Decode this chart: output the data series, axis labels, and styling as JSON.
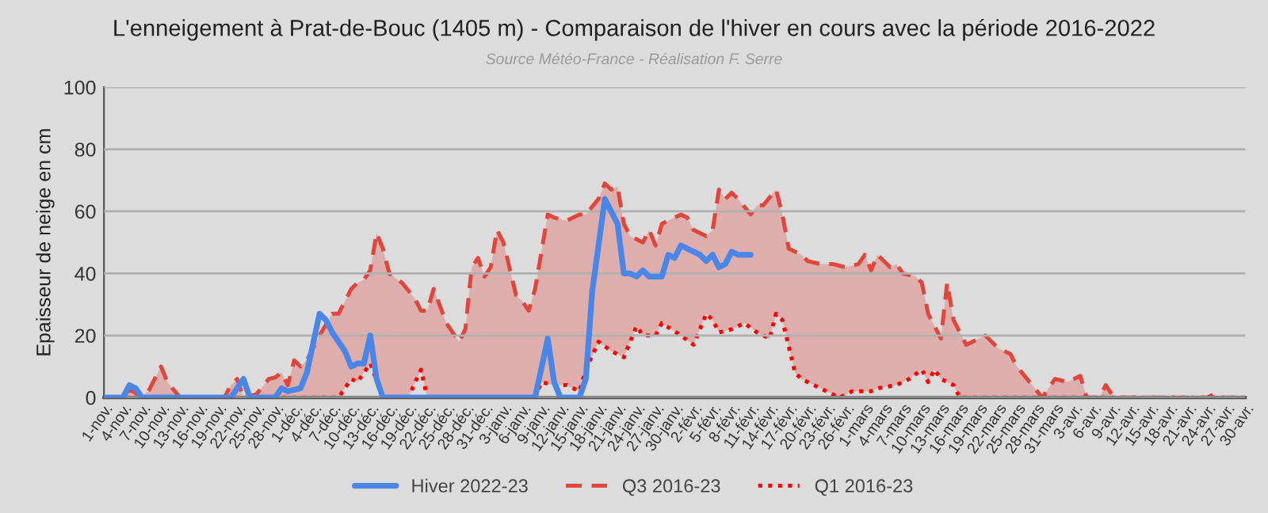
{
  "chart_data": {
    "type": "line",
    "title": "L'enneigement à Prat-de-Bouc (1405 m) - Comparaison de l'hiver en cours avec la période 2016-2022",
    "subtitle": "Source Météo-France - Réalisation F. Serre",
    "ylabel": "Epaisseur de neige en cm",
    "ylim": [
      0,
      100
    ],
    "yticks": [
      0,
      20,
      40,
      60,
      80,
      100
    ],
    "xlim": [
      "2022-11-01",
      "2023-04-30"
    ],
    "xticks": [
      {
        "value": "2022-11-01",
        "label": "1-nov."
      },
      {
        "value": "2022-11-04",
        "label": "4-nov."
      },
      {
        "value": "2022-11-07",
        "label": "7-nov."
      },
      {
        "value": "2022-11-10",
        "label": "10-nov."
      },
      {
        "value": "2022-11-13",
        "label": "13-nov."
      },
      {
        "value": "2022-11-16",
        "label": "16-nov."
      },
      {
        "value": "2022-11-19",
        "label": "19-nov."
      },
      {
        "value": "2022-11-22",
        "label": "22-nov."
      },
      {
        "value": "2022-11-25",
        "label": "25-nov."
      },
      {
        "value": "2022-11-28",
        "label": "28-nov."
      },
      {
        "value": "2022-12-01",
        "label": "1-déc."
      },
      {
        "value": "2022-12-04",
        "label": "4-déc."
      },
      {
        "value": "2022-12-07",
        "label": "7-déc."
      },
      {
        "value": "2022-12-10",
        "label": "10-déc."
      },
      {
        "value": "2022-12-13",
        "label": "13-déc."
      },
      {
        "value": "2022-12-16",
        "label": "16-déc."
      },
      {
        "value": "2022-12-19",
        "label": "19-déc."
      },
      {
        "value": "2022-12-22",
        "label": "22-déc."
      },
      {
        "value": "2022-12-25",
        "label": "25-déc."
      },
      {
        "value": "2022-12-28",
        "label": "28-déc."
      },
      {
        "value": "2022-12-31",
        "label": "31-déc."
      },
      {
        "value": "2023-01-03",
        "label": "3-janv."
      },
      {
        "value": "2023-01-06",
        "label": "6-janv."
      },
      {
        "value": "2023-01-09",
        "label": "9-janv."
      },
      {
        "value": "2023-01-12",
        "label": "12-janv."
      },
      {
        "value": "2023-01-15",
        "label": "15-janv."
      },
      {
        "value": "2023-01-18",
        "label": "18-janv."
      },
      {
        "value": "2023-01-21",
        "label": "21-janv."
      },
      {
        "value": "2023-01-24",
        "label": "24-janv."
      },
      {
        "value": "2023-01-27",
        "label": "27-janv."
      },
      {
        "value": "2023-01-30",
        "label": "30-janv."
      },
      {
        "value": "2023-02-02",
        "label": "2-févr."
      },
      {
        "value": "2023-02-05",
        "label": "5-févr."
      },
      {
        "value": "2023-02-08",
        "label": "8-févr."
      },
      {
        "value": "2023-02-11",
        "label": "11-févr."
      },
      {
        "value": "2023-02-14",
        "label": "14-févr."
      },
      {
        "value": "2023-02-17",
        "label": "17-févr."
      },
      {
        "value": "2023-02-20",
        "label": "20-févr."
      },
      {
        "value": "2023-02-23",
        "label": "23-févr."
      },
      {
        "value": "2023-02-26",
        "label": "26-févr."
      },
      {
        "value": "2023-03-01",
        "label": "1-mars"
      },
      {
        "value": "2023-03-04",
        "label": "4-mars"
      },
      {
        "value": "2023-03-07",
        "label": "7-mars"
      },
      {
        "value": "2023-03-10",
        "label": "10-mars"
      },
      {
        "value": "2023-03-13",
        "label": "13-mars"
      },
      {
        "value": "2023-03-16",
        "label": "16-mars"
      },
      {
        "value": "2023-03-19",
        "label": "19-mars"
      },
      {
        "value": "2023-03-22",
        "label": "22-mars"
      },
      {
        "value": "2023-03-25",
        "label": "25-mars"
      },
      {
        "value": "2023-03-28",
        "label": "28-mars"
      },
      {
        "value": "2023-03-31",
        "label": "31-mars"
      },
      {
        "value": "2023-04-03",
        "label": "3-avr."
      },
      {
        "value": "2023-04-06",
        "label": "6-avr."
      },
      {
        "value": "2023-04-09",
        "label": "9-avr."
      },
      {
        "value": "2023-04-12",
        "label": "12-avr."
      },
      {
        "value": "2023-04-15",
        "label": "15-avr."
      },
      {
        "value": "2023-04-18",
        "label": "18-avr."
      },
      {
        "value": "2023-04-21",
        "label": "21-avr."
      },
      {
        "value": "2023-04-24",
        "label": "24-avr."
      },
      {
        "value": "2023-04-27",
        "label": "27-avr."
      },
      {
        "value": "2023-04-30",
        "label": "30-avr."
      }
    ],
    "grid": "y",
    "legend": "bottom",
    "series": [
      {
        "name": "Hiver 2022-23",
        "type": "line",
        "color": "#4a86e8",
        "line_style": "solid",
        "x": [
          "2022-11-01",
          "2022-11-04",
          "2022-11-05",
          "2022-11-06",
          "2022-11-07",
          "2022-11-21",
          "2022-11-23",
          "2022-11-24",
          "2022-11-28",
          "2022-11-29",
          "2022-11-30",
          "2022-12-02",
          "2022-12-03",
          "2022-12-05",
          "2022-12-06",
          "2022-12-07",
          "2022-12-09",
          "2022-12-10",
          "2022-12-11",
          "2022-12-12",
          "2022-12-13",
          "2022-12-14",
          "2022-12-15",
          "2023-01-08",
          "2023-01-10",
          "2023-01-11",
          "2023-01-12",
          "2023-01-15",
          "2023-01-16",
          "2023-01-17",
          "2023-01-19",
          "2023-01-21",
          "2023-01-22",
          "2023-01-23",
          "2023-01-24",
          "2023-01-25",
          "2023-01-26",
          "2023-01-28",
          "2023-01-29",
          "2023-01-30",
          "2023-01-31",
          "2023-02-01",
          "2023-02-03",
          "2023-02-04",
          "2023-02-05",
          "2023-02-06",
          "2023-02-07",
          "2023-02-08",
          "2023-02-09",
          "2023-02-11"
        ],
        "values": [
          0,
          0,
          4,
          3,
          0,
          0,
          6,
          0,
          0,
          3,
          2,
          3,
          8,
          27,
          25,
          21,
          15,
          10,
          11,
          11,
          20,
          6,
          0,
          0,
          19,
          5,
          0,
          0,
          6,
          34,
          64,
          56,
          40,
          40,
          39,
          41,
          39,
          39,
          46,
          45,
          49,
          48,
          46,
          44,
          46,
          42,
          43,
          47,
          46,
          46
        ]
      },
      {
        "name": "Q3 2016-23",
        "type": "area",
        "color": "#e0463c",
        "line_style": "dashed",
        "x": [
          "2022-11-01",
          "2022-11-04",
          "2022-11-05",
          "2022-11-07",
          "2022-11-08",
          "2022-11-10",
          "2022-11-11",
          "2022-11-13",
          "2022-11-20",
          "2022-11-21",
          "2022-11-22",
          "2022-11-23",
          "2022-11-25",
          "2022-11-27",
          "2022-11-28",
          "2022-11-29",
          "2022-11-30",
          "2022-12-01",
          "2022-12-02",
          "2022-12-03",
          "2022-12-05",
          "2022-12-07",
          "2022-12-08",
          "2022-12-10",
          "2022-12-11",
          "2022-12-12",
          "2022-12-13",
          "2022-12-14",
          "2022-12-15",
          "2022-12-16",
          "2022-12-18",
          "2022-12-20",
          "2022-12-21",
          "2022-12-22",
          "2022-12-23",
          "2022-12-25",
          "2022-12-27",
          "2022-12-28",
          "2022-12-29",
          "2022-12-30",
          "2022-12-31",
          "2023-01-01",
          "2023-01-02",
          "2023-01-03",
          "2023-01-05",
          "2023-01-06",
          "2023-01-07",
          "2023-01-08",
          "2023-01-10",
          "2023-01-11",
          "2023-01-13",
          "2023-01-15",
          "2023-01-16",
          "2023-01-18",
          "2023-01-19",
          "2023-01-20",
          "2023-01-21",
          "2023-01-22",
          "2023-01-23",
          "2023-01-25",
          "2023-01-26",
          "2023-01-27",
          "2023-01-28",
          "2023-01-29",
          "2023-01-31",
          "2023-02-01",
          "2023-02-02",
          "2023-02-04",
          "2023-02-05",
          "2023-02-06",
          "2023-02-07",
          "2023-02-08",
          "2023-02-09",
          "2023-02-11",
          "2023-02-12",
          "2023-02-13",
          "2023-02-15",
          "2023-02-16",
          "2023-02-17",
          "2023-02-19",
          "2023-02-20",
          "2023-02-22",
          "2023-02-24",
          "2023-02-26",
          "2023-02-28",
          "2023-03-01",
          "2023-03-02",
          "2023-03-03",
          "2023-03-05",
          "2023-03-06",
          "2023-03-07",
          "2023-03-09",
          "2023-03-10",
          "2023-03-11",
          "2023-03-13",
          "2023-03-14",
          "2023-03-15",
          "2023-03-17",
          "2023-03-18",
          "2023-03-20",
          "2023-03-22",
          "2023-03-24",
          "2023-03-25",
          "2023-03-27",
          "2023-03-29",
          "2023-03-30",
          "2023-03-31",
          "2023-04-02",
          "2023-04-04",
          "2023-04-05",
          "2023-04-07",
          "2023-04-08",
          "2023-04-09",
          "2023-04-10",
          "2023-04-24",
          "2023-04-25",
          "2023-04-26",
          "2023-04-30"
        ],
        "values": [
          0,
          0,
          2.5,
          0.5,
          2,
          10,
          5,
          0,
          0,
          4,
          6,
          0,
          1,
          6,
          6.5,
          8,
          4,
          12,
          10,
          12,
          20,
          27,
          27,
          35,
          37,
          38,
          41,
          53,
          48,
          40,
          37,
          32,
          28,
          28,
          35,
          24,
          18,
          22,
          42,
          45,
          39,
          42,
          54,
          50,
          33,
          31,
          28,
          35,
          59,
          58,
          57,
          59,
          59,
          64,
          69,
          67,
          68,
          56,
          52,
          50,
          54,
          49,
          56,
          57,
          59,
          58,
          54,
          52,
          54,
          67,
          64,
          66,
          64,
          59,
          62,
          62,
          67,
          59,
          48,
          46,
          44,
          43,
          43,
          42,
          43,
          46,
          41,
          46,
          42,
          43,
          40,
          39,
          37,
          27,
          19,
          37,
          25,
          17,
          18,
          20,
          16,
          14,
          10,
          5,
          0,
          3,
          6,
          5,
          7,
          0,
          0,
          4,
          1,
          0,
          0,
          1,
          0,
          0
        ]
      },
      {
        "name": "Q1 2016-23",
        "type": "line",
        "color": "#ff0000",
        "line_style": "dotted",
        "x": [
          "2022-11-01",
          "2022-12-08",
          "2022-12-10",
          "2022-12-11",
          "2022-12-13",
          "2022-12-15",
          "2022-12-19",
          "2022-12-21",
          "2022-12-22",
          "2023-01-08",
          "2023-01-09",
          "2023-01-11",
          "2023-01-13",
          "2023-01-15",
          "2023-01-16",
          "2023-01-18",
          "2023-01-20",
          "2023-01-22",
          "2023-01-24",
          "2023-01-25",
          "2023-01-27",
          "2023-01-28",
          "2023-01-31",
          "2023-02-02",
          "2023-02-04",
          "2023-02-05",
          "2023-02-06",
          "2023-02-08",
          "2023-02-10",
          "2023-02-12",
          "2023-02-14",
          "2023-02-15",
          "2023-02-16",
          "2023-02-18",
          "2023-02-19",
          "2023-02-21",
          "2023-02-24",
          "2023-02-25",
          "2023-02-27",
          "2023-03-02",
          "2023-03-03",
          "2023-03-06",
          "2023-03-08",
          "2023-03-10",
          "2023-03-11",
          "2023-03-12",
          "2023-03-13",
          "2023-03-15",
          "2023-03-16",
          "2023-04-30"
        ],
        "values": [
          0,
          0,
          6,
          5,
          11,
          0,
          0,
          9,
          0,
          0,
          5,
          4,
          4,
          2,
          9,
          18,
          15,
          13,
          23,
          20,
          20,
          24,
          20,
          17,
          27,
          25,
          21,
          22,
          24,
          21,
          19,
          27,
          25,
          8,
          6,
          4,
          1,
          0,
          2,
          2,
          3,
          4,
          6,
          9,
          5,
          9,
          6,
          4,
          0,
          0
        ]
      }
    ]
  }
}
